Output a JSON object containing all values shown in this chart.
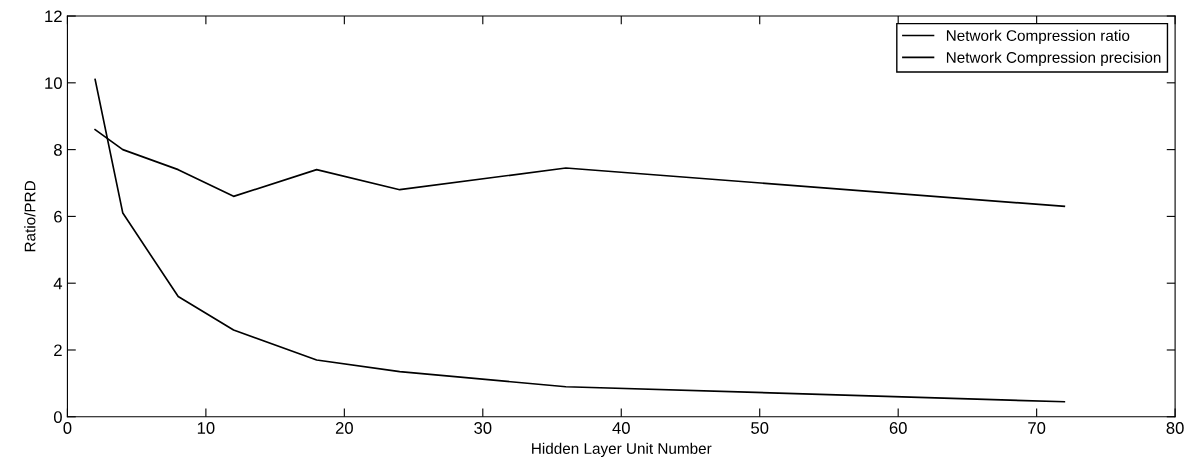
{
  "chart_data": {
    "type": "line",
    "xlabel": "Hidden Layer Unit Number",
    "ylabel": "Ratio/PRD",
    "xlim": [
      0,
      80
    ],
    "xticks": [
      0,
      10,
      20,
      30,
      40,
      50,
      60,
      70,
      80
    ],
    "ylim": [
      0,
      12
    ],
    "yticks": [
      0,
      2,
      4,
      6,
      8,
      10,
      12
    ],
    "grid": false,
    "legend": "top right",
    "marker": "none",
    "line_style": "solid",
    "series": [
      {
        "name": "Network Compression ratio",
        "color": "#000000",
        "x": [
          2,
          4,
          8,
          12,
          18,
          24,
          36,
          72
        ],
        "values": [
          10.1,
          6.1,
          3.6,
          2.6,
          1.7,
          1.35,
          0.9,
          0.45
        ]
      },
      {
        "name": "Network Compression precision",
        "color": "#000000",
        "x": [
          2,
          4,
          8,
          12,
          18,
          24,
          36,
          72
        ],
        "values": [
          8.6,
          8.0,
          7.4,
          6.6,
          7.4,
          6.8,
          7.45,
          6.3
        ]
      }
    ]
  }
}
